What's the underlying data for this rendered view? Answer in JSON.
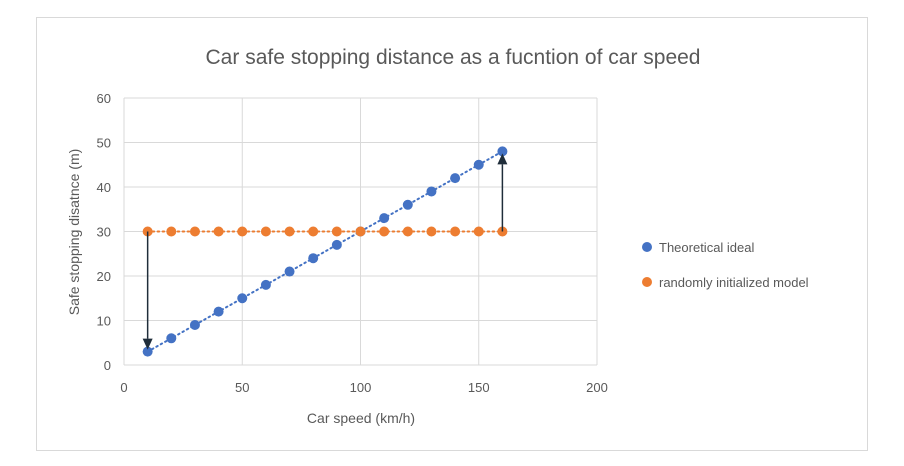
{
  "chart_data": {
    "type": "scatter",
    "title": "Car safe stopping distance as a fucntion of car speed",
    "xlabel": "Car speed (km/h)",
    "ylabel": "Safe stopping disatnce (m)",
    "xlim": [
      0,
      200
    ],
    "ylim": [
      0,
      60
    ],
    "xticks": [
      0,
      50,
      100,
      150,
      200
    ],
    "yticks": [
      0,
      10,
      20,
      30,
      40,
      50,
      60
    ],
    "grid": true,
    "legend_position": "right",
    "series": [
      {
        "name": "Theoretical ideal",
        "color": "#4472c4",
        "trendline": "dotted-linear",
        "x": [
          10,
          20,
          30,
          40,
          50,
          60,
          70,
          80,
          90,
          100,
          110,
          120,
          130,
          140,
          150,
          160
        ],
        "y": [
          3,
          6,
          9,
          12,
          15,
          18,
          21,
          24,
          27,
          30,
          33,
          36,
          39,
          42,
          45,
          48
        ]
      },
      {
        "name": "randomly initialized model",
        "color": "#ed7d31",
        "trendline": "dotted-linear",
        "x": [
          10,
          20,
          30,
          40,
          50,
          60,
          70,
          80,
          90,
          100,
          110,
          120,
          130,
          140,
          150,
          160
        ],
        "y": [
          30,
          30,
          30,
          30,
          30,
          30,
          30,
          30,
          30,
          30,
          30,
          30,
          30,
          30,
          30,
          30
        ]
      }
    ],
    "annotations": [
      {
        "type": "arrow",
        "x": 10,
        "from_y": 30,
        "to_y": 3
      },
      {
        "type": "arrow",
        "x": 160,
        "from_y": 30,
        "to_y": 48
      }
    ],
    "arrow_color": "#1f2d3a"
  }
}
